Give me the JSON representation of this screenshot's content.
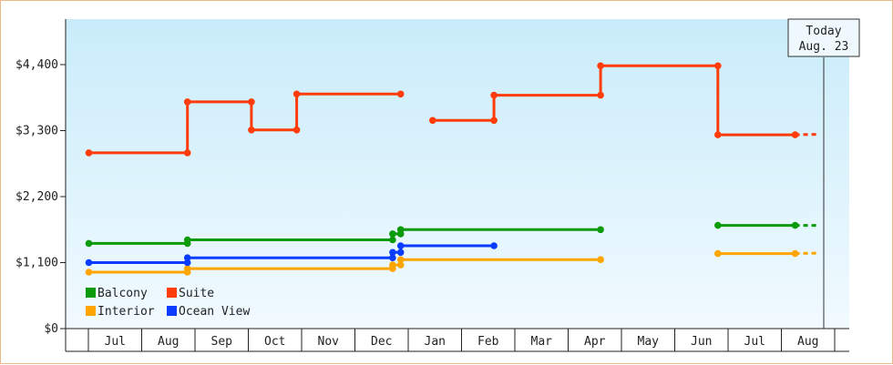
{
  "chart_data": {
    "type": "line",
    "step": true,
    "y_ticks": [
      0,
      1100,
      2200,
      3300,
      4400
    ],
    "y_tick_labels": [
      "$0",
      "$1,100",
      "$2,200",
      "$3,300",
      "$4,400"
    ],
    "ylim": [
      0,
      4400
    ],
    "x_months": [
      "Jul",
      "Aug",
      "Sep",
      "Oct",
      "Nov",
      "Dec",
      "Jan",
      "Feb",
      "Mar",
      "Apr",
      "May",
      "Jun",
      "Jul",
      "Aug"
    ],
    "grid": false,
    "legend_position": "bottom-left",
    "today": {
      "line1": "Today",
      "line2": "Aug. 23",
      "x": 14.0
    },
    "series": [
      {
        "name": "Suite",
        "color": "#ff3c0a",
        "segments": [
          [
            [
              0.0,
              2930
            ],
            [
              1.85,
              2930
            ],
            [
              1.85,
              3780
            ],
            [
              3.05,
              3780
            ],
            [
              3.05,
              3310
            ],
            [
              3.9,
              3310
            ],
            [
              3.9,
              3910
            ],
            [
              5.85,
              3910
            ]
          ],
          [
            [
              6.45,
              3470
            ],
            [
              7.6,
              3470
            ],
            [
              7.6,
              3890
            ],
            [
              9.6,
              3890
            ],
            [
              9.6,
              4380
            ],
            [
              11.8,
              4380
            ],
            [
              11.8,
              3230
            ],
            [
              13.25,
              3230
            ]
          ]
        ],
        "projection": [
          [
            13.25,
            3230
          ],
          [
            13.7,
            3240
          ]
        ]
      },
      {
        "name": "Balcony",
        "color": "#0a9a0a",
        "segments": [
          [
            [
              0.0,
              1420
            ],
            [
              1.85,
              1420
            ],
            [
              1.85,
              1480
            ],
            [
              3.05,
              1480
            ],
            [
              3.9,
              1480
            ],
            [
              5.7,
              1480
            ],
            [
              5.7,
              1580
            ],
            [
              5.85,
              1580
            ],
            [
              5.85,
              1650
            ],
            [
              7.6,
              1650
            ],
            [
              9.6,
              1650
            ]
          ],
          [
            [
              11.8,
              1720
            ],
            [
              13.25,
              1720
            ]
          ]
        ],
        "projection": [
          [
            13.25,
            1720
          ],
          [
            13.7,
            1720
          ]
        ]
      },
      {
        "name": "Interior",
        "color": "#ffa500",
        "segments": [
          [
            [
              0.0,
              940
            ],
            [
              1.85,
              940
            ],
            [
              1.85,
              1000
            ],
            [
              3.05,
              1000
            ],
            [
              3.9,
              1000
            ],
            [
              5.7,
              1000
            ],
            [
              5.7,
              1060
            ],
            [
              5.85,
              1060
            ],
            [
              5.85,
              1150
            ],
            [
              7.6,
              1150
            ],
            [
              9.6,
              1150
            ]
          ],
          [
            [
              11.8,
              1250
            ],
            [
              13.25,
              1250
            ]
          ]
        ],
        "projection": [
          [
            13.25,
            1250
          ],
          [
            13.7,
            1260
          ]
        ]
      },
      {
        "name": "Ocean View",
        "color": "#0a3cff",
        "segments": [
          [
            [
              0.0,
              1100
            ],
            [
              1.85,
              1100
            ],
            [
              1.85,
              1180
            ],
            [
              3.05,
              1180
            ],
            [
              3.9,
              1180
            ],
            [
              5.7,
              1180
            ],
            [
              5.7,
              1270
            ],
            [
              5.85,
              1270
            ],
            [
              5.85,
              1380
            ],
            [
              7.6,
              1380
            ]
          ]
        ],
        "projection": []
      }
    ],
    "legend": [
      {
        "name": "Balcony",
        "color": "#0a9a0a"
      },
      {
        "name": "Suite",
        "color": "#ff3c0a"
      },
      {
        "name": "Interior",
        "color": "#ffa500"
      },
      {
        "name": "Ocean View",
        "color": "#0a3cff"
      }
    ]
  }
}
